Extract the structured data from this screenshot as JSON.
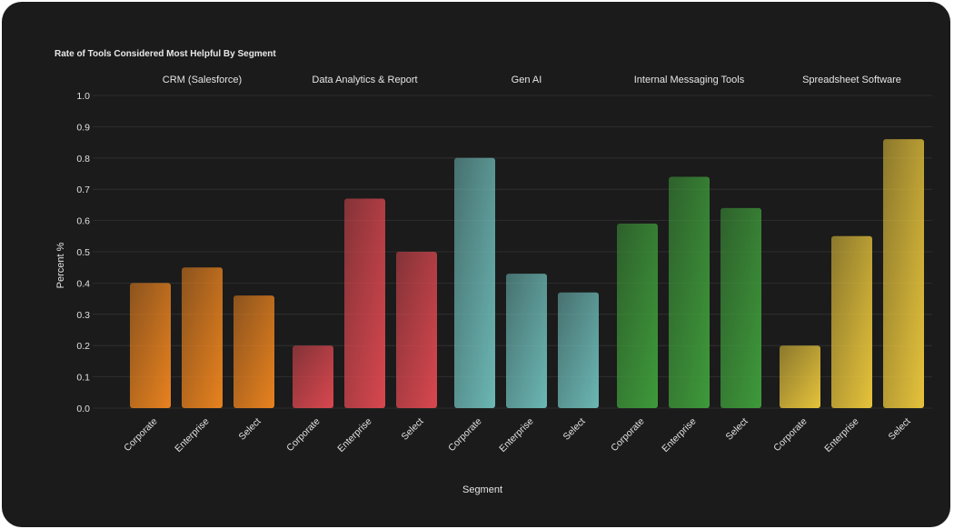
{
  "chart_data": {
    "type": "bar",
    "title": "Rate of Tools Considered Most Helpful By Segment",
    "xlabel": "Segment",
    "ylabel": "Percent %",
    "ylim": [
      0,
      1.0
    ],
    "yticks": [
      "0.0",
      "0.1",
      "0.2",
      "0.3",
      "0.4",
      "0.5",
      "0.6",
      "0.7",
      "0.8",
      "0.9",
      "1.0"
    ],
    "grid": true,
    "categories": [
      "Corporate",
      "Enterprise",
      "Select"
    ],
    "facets": [
      {
        "name": "CRM (Salesforce)",
        "values": [
          0.4,
          0.45,
          0.36
        ],
        "color": "#e8821f"
      },
      {
        "name": "Data Analytics & Report",
        "values": [
          0.2,
          0.67,
          0.5
        ],
        "color": "#d9474f"
      },
      {
        "name": "Gen AI",
        "values": [
          0.8,
          0.43,
          0.37
        ],
        "color": "#6bb7b4"
      },
      {
        "name": "Internal Messaging Tools",
        "values": [
          0.59,
          0.74,
          0.64
        ],
        "color": "#3e9a3a"
      },
      {
        "name": "Spreadsheet Software",
        "values": [
          0.2,
          0.55,
          0.86
        ],
        "color": "#e6c33b"
      }
    ]
  }
}
